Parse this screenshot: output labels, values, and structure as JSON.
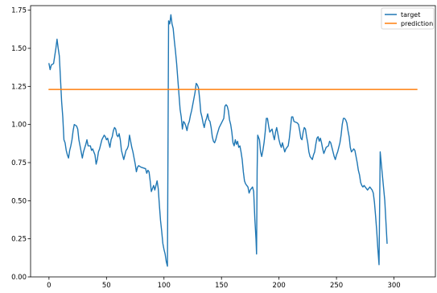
{
  "chart_data": {
    "type": "line",
    "title": "",
    "xlabel": "",
    "ylabel": "",
    "xlim": [
      -16,
      336
    ],
    "ylim": [
      0,
      1.78
    ],
    "xticks": [
      0,
      50,
      100,
      150,
      200,
      250,
      300
    ],
    "yticks": [
      0.0,
      0.25,
      0.5,
      0.75,
      1.0,
      1.25,
      1.5,
      1.75
    ],
    "xtick_labels": [
      "0",
      "50",
      "100",
      "150",
      "200",
      "250",
      "300"
    ],
    "ytick_labels": [
      "0.00",
      "0.25",
      "0.50",
      "0.75",
      "1.00",
      "1.25",
      "1.50",
      "1.75"
    ],
    "grid": false,
    "legend_position": "top-right",
    "series": [
      {
        "name": "target",
        "color": "#1f77b4",
        "points": [
          [
            0,
            1.4
          ],
          [
            1,
            1.36
          ],
          [
            2,
            1.39
          ],
          [
            4,
            1.4
          ],
          [
            5,
            1.45
          ],
          [
            6,
            1.5
          ],
          [
            7,
            1.56
          ],
          [
            8,
            1.5
          ],
          [
            9,
            1.45
          ],
          [
            10,
            1.3
          ],
          [
            11,
            1.15
          ],
          [
            12,
            1.05
          ],
          [
            13,
            0.9
          ],
          [
            14,
            0.88
          ],
          [
            15,
            0.83
          ],
          [
            16,
            0.8
          ],
          [
            17,
            0.78
          ],
          [
            18,
            0.83
          ],
          [
            19,
            0.86
          ],
          [
            20,
            0.9
          ],
          [
            21,
            0.96
          ],
          [
            22,
            1.0
          ],
          [
            24,
            0.99
          ],
          [
            25,
            0.97
          ],
          [
            26,
            0.9
          ],
          [
            27,
            0.86
          ],
          [
            28,
            0.82
          ],
          [
            29,
            0.78
          ],
          [
            30,
            0.82
          ],
          [
            32,
            0.87
          ],
          [
            33,
            0.9
          ],
          [
            34,
            0.86
          ],
          [
            36,
            0.86
          ],
          [
            37,
            0.83
          ],
          [
            38,
            0.84
          ],
          [
            40,
            0.8
          ],
          [
            41,
            0.74
          ],
          [
            42,
            0.77
          ],
          [
            43,
            0.82
          ],
          [
            44,
            0.84
          ],
          [
            46,
            0.9
          ],
          [
            48,
            0.93
          ],
          [
            49,
            0.92
          ],
          [
            50,
            0.9
          ],
          [
            51,
            0.91
          ],
          [
            52,
            0.88
          ],
          [
            53,
            0.85
          ],
          [
            54,
            0.9
          ],
          [
            55,
            0.92
          ],
          [
            56,
            0.96
          ],
          [
            57,
            0.98
          ],
          [
            58,
            0.97
          ],
          [
            59,
            0.93
          ],
          [
            60,
            0.92
          ],
          [
            61,
            0.94
          ],
          [
            62,
            0.9
          ],
          [
            63,
            0.83
          ],
          [
            64,
            0.8
          ],
          [
            65,
            0.77
          ],
          [
            66,
            0.8
          ],
          [
            67,
            0.83
          ],
          [
            68,
            0.84
          ],
          [
            69,
            0.86
          ],
          [
            70,
            0.93
          ],
          [
            71,
            0.89
          ],
          [
            72,
            0.85
          ],
          [
            73,
            0.82
          ],
          [
            74,
            0.78
          ],
          [
            75,
            0.74
          ],
          [
            76,
            0.69
          ],
          [
            77,
            0.72
          ],
          [
            78,
            0.73
          ],
          [
            80,
            0.72
          ],
          [
            84,
            0.71
          ],
          [
            85,
            0.68
          ],
          [
            86,
            0.7
          ],
          [
            87,
            0.69
          ],
          [
            88,
            0.63
          ],
          [
            89,
            0.56
          ],
          [
            90,
            0.58
          ],
          [
            91,
            0.6
          ],
          [
            92,
            0.57
          ],
          [
            93,
            0.6
          ],
          [
            94,
            0.63
          ],
          [
            95,
            0.58
          ],
          [
            96,
            0.47
          ],
          [
            97,
            0.37
          ],
          [
            98,
            0.3
          ],
          [
            99,
            0.22
          ],
          [
            100,
            0.18
          ],
          [
            101,
            0.15
          ],
          [
            102,
            0.1
          ],
          [
            103,
            0.07
          ],
          [
            104,
            1.68
          ],
          [
            105,
            1.66
          ],
          [
            106,
            1.72
          ],
          [
            107,
            1.66
          ],
          [
            108,
            1.63
          ],
          [
            109,
            1.55
          ],
          [
            110,
            1.48
          ],
          [
            111,
            1.4
          ],
          [
            112,
            1.3
          ],
          [
            113,
            1.2
          ],
          [
            114,
            1.1
          ],
          [
            115,
            1.05
          ],
          [
            116,
            0.97
          ],
          [
            117,
            1.02
          ],
          [
            118,
            1.01
          ],
          [
            119,
            0.99
          ],
          [
            120,
            0.96
          ],
          [
            121,
            1.0
          ],
          [
            122,
            1.02
          ],
          [
            123,
            1.06
          ],
          [
            124,
            1.09
          ],
          [
            125,
            1.13
          ],
          [
            126,
            1.17
          ],
          [
            127,
            1.21
          ],
          [
            128,
            1.27
          ],
          [
            129,
            1.26
          ],
          [
            130,
            1.24
          ],
          [
            131,
            1.17
          ],
          [
            132,
            1.08
          ],
          [
            133,
            1.05
          ],
          [
            134,
            1.01
          ],
          [
            135,
            0.98
          ],
          [
            136,
            1.02
          ],
          [
            137,
            1.04
          ],
          [
            138,
            1.07
          ],
          [
            139,
            1.03
          ],
          [
            140,
            1.02
          ],
          [
            141,
            0.98
          ],
          [
            142,
            0.92
          ],
          [
            143,
            0.89
          ],
          [
            144,
            0.88
          ],
          [
            145,
            0.9
          ],
          [
            146,
            0.93
          ],
          [
            148,
            0.98
          ],
          [
            150,
            1.01
          ],
          [
            152,
            1.04
          ],
          [
            153,
            1.12
          ],
          [
            154,
            1.13
          ],
          [
            155,
            1.12
          ],
          [
            156,
            1.09
          ],
          [
            157,
            1.03
          ],
          [
            158,
            1.0
          ],
          [
            159,
            0.95
          ],
          [
            160,
            0.88
          ],
          [
            161,
            0.86
          ],
          [
            162,
            0.9
          ],
          [
            163,
            0.87
          ],
          [
            164,
            0.89
          ],
          [
            165,
            0.85
          ],
          [
            166,
            0.86
          ],
          [
            167,
            0.82
          ],
          [
            168,
            0.77
          ],
          [
            169,
            0.69
          ],
          [
            170,
            0.63
          ],
          [
            171,
            0.61
          ],
          [
            172,
            0.6
          ],
          [
            173,
            0.59
          ],
          [
            174,
            0.55
          ],
          [
            175,
            0.57
          ],
          [
            177,
            0.59
          ],
          [
            178,
            0.56
          ],
          [
            179,
            0.38
          ],
          [
            180,
            0.25
          ],
          [
            180.5,
            0.15
          ],
          [
            181,
            0.7
          ],
          [
            181.5,
            0.93
          ],
          [
            182,
            0.92
          ],
          [
            183,
            0.9
          ],
          [
            184,
            0.82
          ],
          [
            185,
            0.79
          ],
          [
            186,
            0.83
          ],
          [
            187,
            0.88
          ],
          [
            188,
            0.95
          ],
          [
            189,
            1.04
          ],
          [
            190,
            1.04
          ],
          [
            191,
            0.99
          ],
          [
            192,
            0.95
          ],
          [
            193,
            0.96
          ],
          [
            194,
            0.97
          ],
          [
            195,
            0.93
          ],
          [
            196,
            0.9
          ],
          [
            197,
            0.95
          ],
          [
            198,
            0.98
          ],
          [
            199,
            0.94
          ],
          [
            200,
            0.9
          ],
          [
            201,
            0.87
          ],
          [
            202,
            0.85
          ],
          [
            203,
            0.88
          ],
          [
            204,
            0.85
          ],
          [
            205,
            0.82
          ],
          [
            206,
            0.84
          ],
          [
            208,
            0.86
          ],
          [
            209,
            0.91
          ],
          [
            210,
            0.98
          ],
          [
            211,
            1.05
          ],
          [
            212,
            1.05
          ],
          [
            213,
            1.02
          ],
          [
            216,
            1.01
          ],
          [
            217,
            1.0
          ],
          [
            218,
            0.96
          ],
          [
            219,
            0.91
          ],
          [
            220,
            0.9
          ],
          [
            221,
            0.95
          ],
          [
            222,
            0.98
          ],
          [
            223,
            0.97
          ],
          [
            224,
            0.92
          ],
          [
            225,
            0.88
          ],
          [
            226,
            0.82
          ],
          [
            227,
            0.79
          ],
          [
            228,
            0.78
          ],
          [
            229,
            0.77
          ],
          [
            230,
            0.8
          ],
          [
            231,
            0.82
          ],
          [
            232,
            0.87
          ],
          [
            233,
            0.91
          ],
          [
            234,
            0.92
          ],
          [
            235,
            0.89
          ],
          [
            236,
            0.91
          ],
          [
            237,
            0.88
          ],
          [
            238,
            0.84
          ],
          [
            239,
            0.81
          ],
          [
            240,
            0.83
          ],
          [
            241,
            0.85
          ],
          [
            243,
            0.86
          ],
          [
            244,
            0.89
          ],
          [
            245,
            0.88
          ],
          [
            246,
            0.85
          ],
          [
            247,
            0.82
          ],
          [
            248,
            0.79
          ],
          [
            249,
            0.77
          ],
          [
            250,
            0.8
          ],
          [
            251,
            0.82
          ],
          [
            252,
            0.85
          ],
          [
            253,
            0.88
          ],
          [
            254,
            0.93
          ],
          [
            255,
            1.0
          ],
          [
            256,
            1.04
          ],
          [
            257,
            1.04
          ],
          [
            258,
            1.03
          ],
          [
            259,
            1.01
          ],
          [
            260,
            0.96
          ],
          [
            261,
            0.92
          ],
          [
            262,
            0.85
          ],
          [
            263,
            0.82
          ],
          [
            264,
            0.83
          ],
          [
            265,
            0.84
          ],
          [
            266,
            0.83
          ],
          [
            267,
            0.79
          ],
          [
            268,
            0.75
          ],
          [
            269,
            0.7
          ],
          [
            270,
            0.67
          ],
          [
            271,
            0.62
          ],
          [
            272,
            0.6
          ],
          [
            273,
            0.59
          ],
          [
            274,
            0.6
          ],
          [
            275,
            0.59
          ],
          [
            276,
            0.58
          ],
          [
            277,
            0.57
          ],
          [
            278,
            0.58
          ],
          [
            279,
            0.59
          ],
          [
            280,
            0.58
          ],
          [
            281,
            0.57
          ],
          [
            282,
            0.55
          ],
          [
            283,
            0.49
          ],
          [
            284,
            0.4
          ],
          [
            285,
            0.3
          ],
          [
            286,
            0.18
          ],
          [
            287,
            0.08
          ],
          [
            288,
            0.82
          ],
          [
            289,
            0.74
          ],
          [
            290,
            0.66
          ],
          [
            291,
            0.58
          ],
          [
            292,
            0.5
          ],
          [
            293,
            0.36
          ],
          [
            294,
            0.22
          ]
        ]
      },
      {
        "name": "prediction",
        "color": "#ff7f0e",
        "points": [
          [
            0,
            1.23
          ],
          [
            320,
            1.23
          ]
        ]
      }
    ]
  }
}
